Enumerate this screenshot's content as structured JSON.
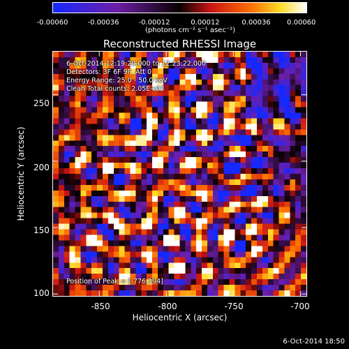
{
  "colorbar": {
    "ticks": [
      "-0.00060",
      "-0.00036",
      "-0.00012",
      "0.00012",
      "0.00036",
      "0.00060"
    ],
    "unit": "(photons cm⁻² s⁻¹ asec⁻²)",
    "range": [
      -0.0006,
      0.0006
    ]
  },
  "annotations": {
    "line1": "6-Oct-2014 12:19:20.000 to 12:23:22.000",
    "line2": "Detectors: 3F 6F 9F, Att 0",
    "line3": "Energy Range: 25.0 - 50.0 keV",
    "line4": "Clean     Total counts: 2.05E+03",
    "peak": "Position of Peak = [-776,194]"
  },
  "footer": {
    "date": "6-Oct-2014 18:50"
  },
  "chart_data": {
    "type": "heatmap",
    "title": "Reconstructed RHESSI Image",
    "xlabel": "Heliocentric X (arcsec)",
    "ylabel": "Heliocentric Y (arcsec)",
    "xlim": [
      -885,
      -695
    ],
    "ylim": [
      98,
      283
    ],
    "x_ticks": [
      "-850",
      "-800",
      "-750",
      "-700"
    ],
    "x_tick_values": [
      -850,
      -800,
      -750,
      -700
    ],
    "y_ticks": [
      "100",
      "150",
      "200",
      "250"
    ],
    "y_tick_values": [
      100,
      150,
      200,
      250
    ],
    "colormap": "blue-purple-red-yellow-white",
    "peak_position": [
      -776,
      194
    ]
  }
}
